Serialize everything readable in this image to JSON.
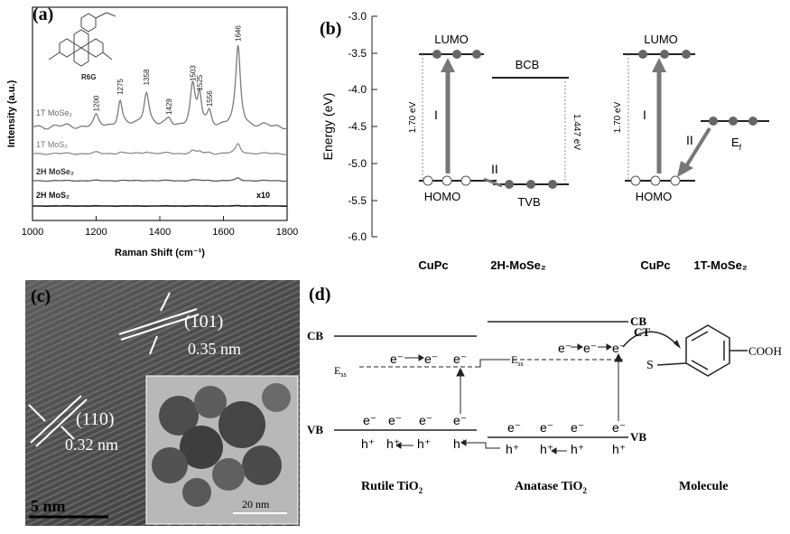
{
  "panel_a": {
    "label": "(a)",
    "molecule_label": "R6G",
    "ylabel": "Intensity (a.u.)",
    "xlabel": "Raman Shift (cm⁻¹)",
    "x_ticks": [
      "1000",
      "1200",
      "1400",
      "1600",
      "1800"
    ],
    "peak_labels": [
      "1200",
      "1275",
      "1358",
      "1429",
      "1503",
      "1525",
      "1556",
      "1646"
    ],
    "traces": [
      {
        "name": "1T MoSe₂",
        "color": "#7b7b7b"
      },
      {
        "name": "1T MoS₂",
        "color": "#8c8c8c"
      },
      {
        "name": "2H MoSe₂",
        "color": "#5a5a5a"
      },
      {
        "name": "2H MoS₂",
        "color": "#1a1a1a"
      }
    ],
    "scale_note": "x10"
  },
  "chart_data": {
    "type": "line",
    "x_unit": "cm⁻¹",
    "xlim": [
      1000,
      1800
    ],
    "ylabel": "Intensity (a.u.)",
    "xlabel": "Raman Shift (cm⁻¹)",
    "peaks_cm1": [
      1200,
      1275,
      1358,
      1429,
      1503,
      1525,
      1556,
      1646
    ],
    "series": [
      {
        "name": "1T MoSe₂",
        "relative_peak_heights": [
          0.12,
          0.33,
          0.45,
          0.08,
          0.5,
          0.38,
          0.18,
          1.0
        ]
      },
      {
        "name": "1T MoS₂",
        "relative_peak_heights": [
          0.04,
          0.06,
          0.08,
          0.02,
          0.1,
          0.08,
          0.04,
          0.35
        ]
      },
      {
        "name": "2H MoSe₂",
        "relative_peak_heights": [
          0.02,
          0.03,
          0.03,
          0.01,
          0.05,
          0.04,
          0.02,
          0.18
        ]
      },
      {
        "name": "2H MoS₂",
        "relative_peak_heights": [
          0.0,
          0.0,
          0.0,
          0.0,
          0.01,
          0.0,
          0.0,
          0.05
        ]
      }
    ]
  },
  "panel_b": {
    "label": "(b)",
    "ylabel": "Energy (eV)",
    "y_ticks": [
      "-3.0",
      "-3.5",
      "-4.0",
      "-4.5",
      "-5.0",
      "-5.5",
      "-6.0"
    ],
    "lumo": "LUMO",
    "homo": "HOMO",
    "bcb": "BCB",
    "tvb": "TVB",
    "ef": "E",
    "ef_sub": "f",
    "gap_cupc": "1.70 eV",
    "gap_2h": "1.447 eV",
    "gap_cupc_right": "1.70 eV",
    "arrow_I": "I",
    "arrow_II": "II",
    "bottom_left_a": "CuPc",
    "bottom_left_b": "2H-MoSe₂",
    "bottom_right_a": "CuPc",
    "bottom_right_b": "1T-MoSe₂"
  },
  "panel_c": {
    "label": "(c)",
    "plane_101": "(101)",
    "d_101": "0.35 nm",
    "plane_110": "(110)",
    "d_110": "0.32 nm",
    "scale_main": "5 nm",
    "scale_inset": "20 nm"
  },
  "panel_d": {
    "label": "(d)",
    "cb": "CB",
    "vb": "VB",
    "ess": "E",
    "ess_sub": "ss",
    "electron": "e⁻",
    "hole": "h⁺",
    "ct": "CT",
    "sulfur": "S",
    "cooh": "COOH",
    "label_rutile_a": "Rutile TiO",
    "label_rutile_sub": "2",
    "label_anatase_a": "Anatase TiO",
    "label_anatase_sub": "2",
    "label_molecule": "Molecule"
  }
}
